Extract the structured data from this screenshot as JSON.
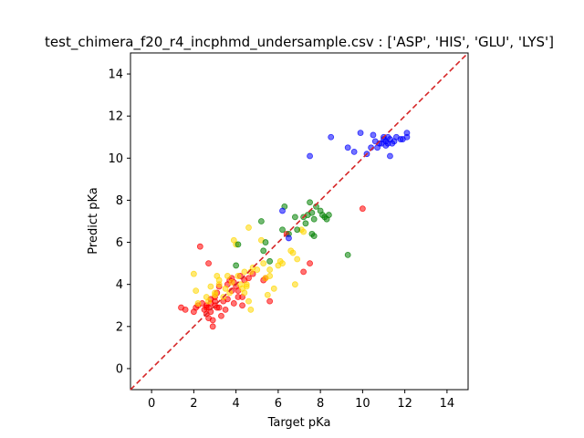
{
  "chart_data": {
    "type": "scatter",
    "title": "test_chimera_f20_r4_incphmd_undersample.csv : ['ASP', 'HIS', 'GLU', 'LYS']",
    "xlabel": "Target pKa",
    "ylabel": "Predict pKa",
    "xlim": [
      -1,
      15
    ],
    "ylim": [
      -1,
      15
    ],
    "xticks": [
      "0",
      "2",
      "4",
      "6",
      "8",
      "10",
      "12",
      "14"
    ],
    "yticks": [
      "0",
      "2",
      "4",
      "6",
      "8",
      "10",
      "12",
      "14"
    ],
    "grid": false,
    "reference_line": {
      "from": [
        -1,
        -1
      ],
      "to": [
        15,
        15
      ],
      "color": "#d62728",
      "style": "dashed"
    },
    "series": [
      {
        "name": "ASP",
        "color": "#ff0000",
        "points": [
          [
            1.4,
            2.9
          ],
          [
            1.6,
            2.8
          ],
          [
            2.0,
            2.7
          ],
          [
            2.1,
            2.9
          ],
          [
            2.2,
            3.0
          ],
          [
            2.3,
            5.8
          ],
          [
            2.4,
            3.1
          ],
          [
            2.5,
            2.8
          ],
          [
            2.6,
            3.0
          ],
          [
            2.6,
            2.6
          ],
          [
            2.7,
            2.4
          ],
          [
            2.7,
            2.9
          ],
          [
            2.8,
            2.7
          ],
          [
            2.8,
            3.1
          ],
          [
            2.9,
            2.3
          ],
          [
            2.9,
            2.0
          ],
          [
            2.7,
            5.0
          ],
          [
            2.8,
            3.3
          ],
          [
            3.0,
            3.0
          ],
          [
            3.0,
            3.4
          ],
          [
            3.1,
            3.6
          ],
          [
            3.2,
            2.9
          ],
          [
            3.2,
            3.9
          ],
          [
            3.3,
            2.5
          ],
          [
            3.4,
            3.2
          ],
          [
            3.5,
            2.8
          ],
          [
            3.6,
            4.0
          ],
          [
            3.6,
            3.3
          ],
          [
            3.7,
            4.2
          ],
          [
            3.8,
            3.7
          ],
          [
            3.8,
            4.3
          ],
          [
            3.9,
            4.1
          ],
          [
            3.9,
            3.1
          ],
          [
            4.0,
            3.9
          ],
          [
            4.1,
            3.4
          ],
          [
            4.1,
            3.7
          ],
          [
            4.2,
            4.4
          ],
          [
            4.3,
            3.4
          ],
          [
            4.4,
            4.2
          ],
          [
            4.3,
            3.0
          ],
          [
            4.6,
            4.3
          ],
          [
            4.8,
            4.5
          ],
          [
            5.3,
            4.2
          ],
          [
            5.4,
            4.3
          ],
          [
            5.6,
            3.2
          ],
          [
            6.4,
            6.4
          ],
          [
            7.2,
            4.6
          ],
          [
            7.5,
            5.0
          ],
          [
            10.0,
            7.6
          ],
          [
            3.1,
            2.9
          ],
          [
            2.6,
            2.9
          ],
          [
            3.0,
            3.2
          ]
        ]
      },
      {
        "name": "HIS",
        "color": "#ffd700",
        "points": [
          [
            2.0,
            4.5
          ],
          [
            2.1,
            3.7
          ],
          [
            2.2,
            3.1
          ],
          [
            2.6,
            3.4
          ],
          [
            2.7,
            3.2
          ],
          [
            2.8,
            3.9
          ],
          [
            3.0,
            3.6
          ],
          [
            3.1,
            4.4
          ],
          [
            3.2,
            4.0
          ],
          [
            3.4,
            3.4
          ],
          [
            3.5,
            3.8
          ],
          [
            3.6,
            4.4
          ],
          [
            3.7,
            3.6
          ],
          [
            3.8,
            4.1
          ],
          [
            3.9,
            6.1
          ],
          [
            4.0,
            5.9
          ],
          [
            4.1,
            4.4
          ],
          [
            4.2,
            4.0
          ],
          [
            4.3,
            3.8
          ],
          [
            4.4,
            3.6
          ],
          [
            4.5,
            4.0
          ],
          [
            4.5,
            3.9
          ],
          [
            4.6,
            3.2
          ],
          [
            4.6,
            6.7
          ],
          [
            4.7,
            2.8
          ],
          [
            4.7,
            4.6
          ],
          [
            4.8,
            4.8
          ],
          [
            5.0,
            4.7
          ],
          [
            5.2,
            6.1
          ],
          [
            5.3,
            5.0
          ],
          [
            5.4,
            4.3
          ],
          [
            5.5,
            3.5
          ],
          [
            5.6,
            4.4
          ],
          [
            5.6,
            4.7
          ],
          [
            5.8,
            3.8
          ],
          [
            6.0,
            4.9
          ],
          [
            6.1,
            5.1
          ],
          [
            6.2,
            5.0
          ],
          [
            6.6,
            5.6
          ],
          [
            6.7,
            5.5
          ],
          [
            6.8,
            4.0
          ],
          [
            6.9,
            5.2
          ],
          [
            7.1,
            6.6
          ],
          [
            7.2,
            6.5
          ],
          [
            3.0,
            3.5
          ],
          [
            3.2,
            4.2
          ],
          [
            4.4,
            4.6
          ]
        ]
      },
      {
        "name": "GLU",
        "color": "#008000",
        "points": [
          [
            4.0,
            4.9
          ],
          [
            4.1,
            5.9
          ],
          [
            5.2,
            7.0
          ],
          [
            5.3,
            5.6
          ],
          [
            5.4,
            6.0
          ],
          [
            5.6,
            5.1
          ],
          [
            6.2,
            6.6
          ],
          [
            6.5,
            6.4
          ],
          [
            6.8,
            7.2
          ],
          [
            6.9,
            6.6
          ],
          [
            7.2,
            7.2
          ],
          [
            7.3,
            6.9
          ],
          [
            7.4,
            7.3
          ],
          [
            7.5,
            7.9
          ],
          [
            7.6,
            7.4
          ],
          [
            7.6,
            6.4
          ],
          [
            7.7,
            7.1
          ],
          [
            7.7,
            6.3
          ],
          [
            7.8,
            7.7
          ],
          [
            8.0,
            7.5
          ],
          [
            8.1,
            7.3
          ],
          [
            8.2,
            7.2
          ],
          [
            8.3,
            7.1
          ],
          [
            8.4,
            7.3
          ],
          [
            9.3,
            5.4
          ],
          [
            6.3,
            7.7
          ]
        ]
      },
      {
        "name": "LYS",
        "color": "#0000ff",
        "points": [
          [
            6.2,
            7.5
          ],
          [
            6.5,
            6.2
          ],
          [
            7.5,
            10.1
          ],
          [
            8.5,
            11.0
          ],
          [
            9.3,
            10.5
          ],
          [
            9.6,
            10.3
          ],
          [
            9.9,
            11.2
          ],
          [
            10.2,
            10.2
          ],
          [
            10.4,
            10.5
          ],
          [
            10.5,
            11.1
          ],
          [
            10.6,
            10.8
          ],
          [
            10.7,
            10.5
          ],
          [
            10.8,
            10.7
          ],
          [
            11.0,
            10.9
          ],
          [
            11.0,
            11.0
          ],
          [
            11.1,
            10.6
          ],
          [
            11.1,
            10.8
          ],
          [
            11.2,
            10.7
          ],
          [
            11.2,
            11.0
          ],
          [
            11.3,
            10.9
          ],
          [
            11.3,
            10.1
          ],
          [
            11.4,
            10.7
          ],
          [
            11.5,
            10.8
          ],
          [
            11.8,
            10.9
          ],
          [
            11.9,
            10.9
          ],
          [
            12.1,
            11.0
          ],
          [
            12.1,
            11.2
          ],
          [
            10.9,
            10.7
          ],
          [
            11.6,
            11.0
          ]
        ]
      }
    ]
  }
}
